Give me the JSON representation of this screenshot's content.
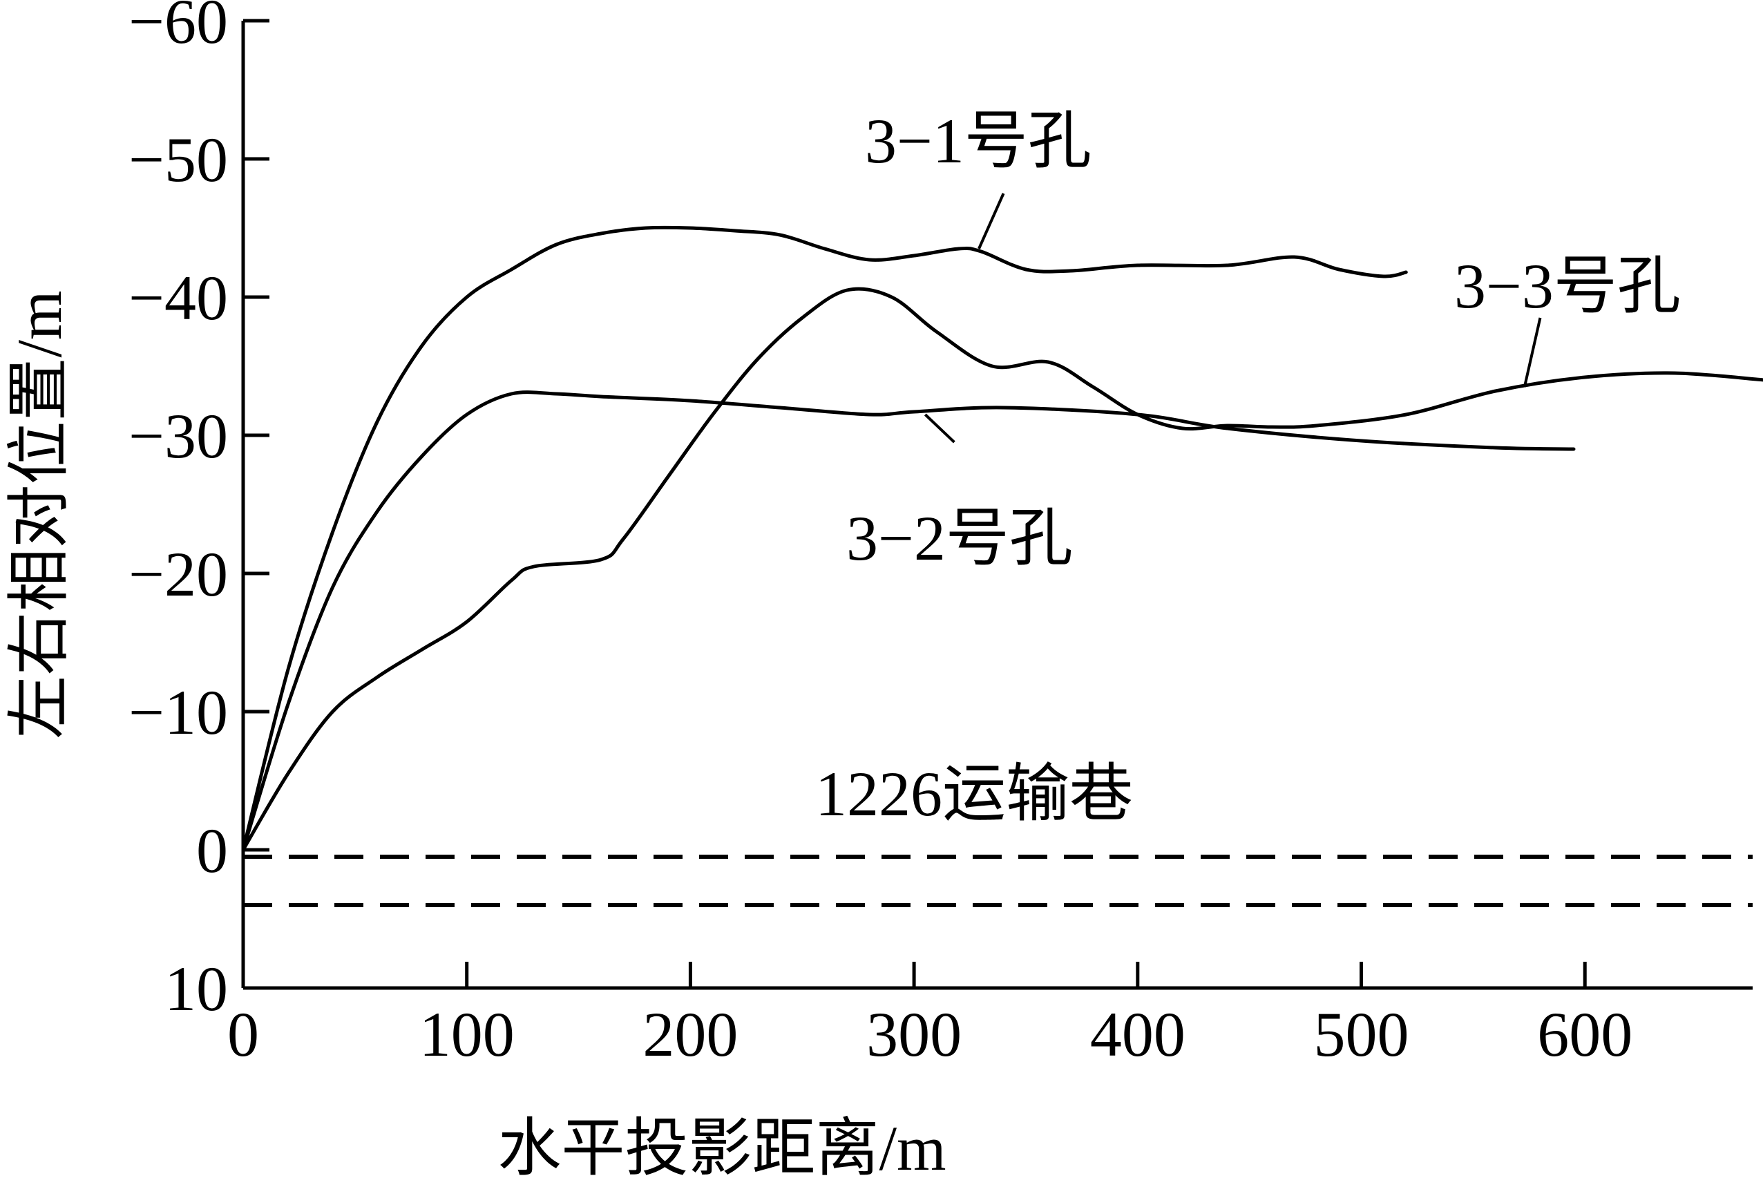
{
  "chart_data": {
    "type": "line",
    "xlabel": "水平投影距离/m",
    "ylabel": "左右相对位置/m",
    "xlim": [
      0,
      675
    ],
    "ylim": [
      10,
      -60
    ],
    "y_reversed": true,
    "xticks": [
      0,
      100,
      200,
      300,
      400,
      500,
      600
    ],
    "yticks": [
      -60,
      -50,
      -40,
      -30,
      -20,
      -10,
      0,
      10
    ],
    "grid": false,
    "legend": "none",
    "series": [
      {
        "name": "3−1号孔",
        "x": [
          0,
          20,
          40,
          60,
          80,
          100,
          120,
          140,
          160,
          180,
          200,
          220,
          240,
          260,
          280,
          300,
          320,
          330,
          350,
          370,
          400,
          440,
          470,
          490,
          510,
          520
        ],
        "y": [
          0,
          -13,
          -23,
          -31,
          -36.5,
          -40,
          -42,
          -43.8,
          -44.6,
          -45,
          -45,
          -44.8,
          -44.5,
          -43.5,
          -42.7,
          -43,
          -43.5,
          -43.3,
          -42,
          -41.9,
          -42.3,
          -42.3,
          -42.9,
          -42,
          -41.5,
          -41.8
        ]
      },
      {
        "name": "3−2号孔",
        "x": [
          0,
          20,
          40,
          60,
          80,
          100,
          120,
          140,
          160,
          200,
          240,
          280,
          300,
          340,
          400,
          440,
          500,
          560,
          595
        ],
        "y": [
          0,
          -10.5,
          -19,
          -24.5,
          -28.5,
          -31.5,
          -33,
          -33,
          -32.8,
          -32.5,
          -32,
          -31.5,
          -31.7,
          -32,
          -31.5,
          -30.5,
          -29.6,
          -29.1,
          -29
        ]
      },
      {
        "name": "3−3号孔",
        "x": [
          0,
          20,
          40,
          60,
          80,
          100,
          120,
          130,
          160,
          170,
          190,
          210,
          230,
          250,
          270,
          290,
          310,
          335,
          360,
          380,
          400,
          420,
          440,
          460,
          480,
          520,
          560,
          600,
          640,
          680
        ],
        "y": [
          0,
          -5.5,
          -10,
          -12.5,
          -14.5,
          -16.5,
          -19.5,
          -20.5,
          -21,
          -22.5,
          -27,
          -31.5,
          -35.5,
          -38.5,
          -40.5,
          -40,
          -37.5,
          -35,
          -35.3,
          -33.5,
          -31.5,
          -30.5,
          -30.7,
          -30.6,
          -30.7,
          -31.5,
          -33.2,
          -34.2,
          -34.5,
          -34
        ]
      }
    ],
    "reference_lines": {
      "label": "1226运输巷",
      "y": [
        0.5,
        4
      ]
    },
    "annotations": [
      {
        "text": "3−1号孔",
        "series": "3−1号孔"
      },
      {
        "text": "3−2号孔",
        "series": "3−2号孔"
      },
      {
        "text": "3−3号孔",
        "series": "3−3号孔"
      },
      {
        "text": "1226运输巷",
        "series": "reference"
      }
    ]
  }
}
